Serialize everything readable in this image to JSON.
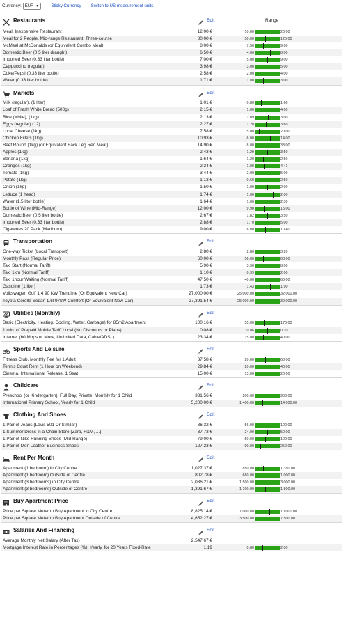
{
  "topbar": {
    "currency_label": "Currency:",
    "currency_value": "EUR",
    "sticky_link": "Sticky Currency",
    "units_link": "Switch to US measurement units"
  },
  "edit_label": "Edit",
  "range_header": "Range",
  "colors": {
    "bar": "#2aa317",
    "link": "#1a4fc4",
    "alt_row": "#f2f2f2"
  },
  "categories": [
    {
      "title": "Restaurants",
      "icon": "fork-knife-icon",
      "show_range_header": true,
      "items": [
        {
          "name": "Meal, Inexpensive Restaurant",
          "price": "12.00 €",
          "min": "10.00",
          "max": "20.00",
          "range": [
            10,
            20
          ],
          "value": 12
        },
        {
          "name": "Meal for 2 People, Mid-range Restaurant, Three-course",
          "price": "80.00 €",
          "min": "50.00",
          "max": "120.00",
          "range": [
            50,
            120
          ],
          "value": 80
        },
        {
          "name": "McMeal at McDonalds (or Equivalent Combo Meal)",
          "price": "8.00 €",
          "min": "7.50",
          "max": "9.00",
          "range": [
            7.5,
            9
          ],
          "value": 8
        },
        {
          "name": "Domestic Beer (0.5 liter draught)",
          "price": "6.50 €",
          "min": "4.00",
          "max": "8.00",
          "range": [
            4,
            8
          ],
          "value": 6.5
        },
        {
          "name": "Imported Beer (0.33 liter bottle)",
          "price": "7.00 €",
          "min": "5.00",
          "max": "9.00",
          "range": [
            5,
            9
          ],
          "value": 7
        },
        {
          "name": "Cappuccino (regular)",
          "price": "3.98 €",
          "min": "3.00",
          "max": "5.00",
          "range": [
            3,
            5
          ],
          "value": 3.98
        },
        {
          "name": "Coke/Pepsi (0.33 liter bottle)",
          "price": "2.58 €",
          "min": "2.00",
          "max": "4.00",
          "range": [
            2,
            4
          ],
          "value": 2.58
        },
        {
          "name": "Water (0.33 liter bottle)",
          "price": "1.71 €",
          "min": "1.00",
          "max": "3.00",
          "range": [
            1,
            3
          ],
          "value": 1.71
        }
      ]
    },
    {
      "title": "Markets",
      "icon": "shopping-cart-icon",
      "show_range_header": false,
      "items": [
        {
          "name": "Milk (regular), (1 liter)",
          "price": "1.01 €",
          "min": "0.80",
          "max": "1.60",
          "range": [
            0.8,
            1.6
          ],
          "value": 1.01
        },
        {
          "name": "Loaf of Fresh White Bread (500g)",
          "price": "2.15 €",
          "min": "1.00",
          "max": "4.00",
          "range": [
            1,
            4
          ],
          "value": 2.15
        },
        {
          "name": "Rice (white), (1kg)",
          "price": "2.13 €",
          "min": "1.09",
          "max": "3.00",
          "range": [
            1.09,
            3
          ],
          "value": 2.13
        },
        {
          "name": "Eggs (regular) (12)",
          "price": "2.27 €",
          "min": "1.20",
          "max": "3.60",
          "range": [
            1.2,
            3.6
          ],
          "value": 2.27
        },
        {
          "name": "Local Cheese (1kg)",
          "price": "7.58 €",
          "min": "5.00",
          "max": "20.00",
          "range": [
            5,
            20
          ],
          "value": 7.58
        },
        {
          "name": "Chicken Fillets (1kg)",
          "price": "10.93 €",
          "min": "6.00",
          "max": "14.00",
          "range": [
            6,
            14
          ],
          "value": 10.93
        },
        {
          "name": "Beef Round (1kg) (or Equivalent Back Leg Red Meat)",
          "price": "14.90 €",
          "min": "8.00",
          "max": "33.00",
          "range": [
            8,
            33
          ],
          "value": 14.9
        },
        {
          "name": "Apples (1kg)",
          "price": "2.43 €",
          "min": "1.29",
          "max": "3.50",
          "range": [
            1.29,
            3.5
          ],
          "value": 2.43
        },
        {
          "name": "Banana (1kg)",
          "price": "1.64 €",
          "min": "1.20",
          "max": "2.50",
          "range": [
            1.2,
            2.5
          ],
          "value": 1.64
        },
        {
          "name": "Oranges (1kg)",
          "price": "2.34 €",
          "min": "1.00",
          "max": "4.41",
          "range": [
            1,
            4.41
          ],
          "value": 2.34
        },
        {
          "name": "Tomato (1kg)",
          "price": "3.44 €",
          "min": "2.00",
          "max": "5.00",
          "range": [
            2,
            5
          ],
          "value": 3.44
        },
        {
          "name": "Potato (1kg)",
          "price": "1.13 €",
          "min": "0.60",
          "max": "2.50",
          "range": [
            0.6,
            2.5
          ],
          "value": 1.13
        },
        {
          "name": "Onion (1kg)",
          "price": "1.50 €",
          "min": "1.00",
          "max": "2.00",
          "range": [
            1,
            2
          ],
          "value": 1.5
        },
        {
          "name": "Lettuce (1 head)",
          "price": "1.74 €",
          "min": "1.00",
          "max": "2.00",
          "range": [
            1,
            2
          ],
          "value": 1.74
        },
        {
          "name": "Water (1.5 liter bottle)",
          "price": "1.64 €",
          "min": "1.00",
          "max": "2.30",
          "range": [
            1,
            2.3
          ],
          "value": 1.64
        },
        {
          "name": "Bottle of Wine (Mid-Range)",
          "price": "12.00 €",
          "min": "9.90",
          "max": "15.00",
          "range": [
            9.9,
            15
          ],
          "value": 12
        },
        {
          "name": "Domestic Beer (0.5 liter bottle)",
          "price": "2.67 €",
          "min": "1.82",
          "max": "3.50",
          "range": [
            1.82,
            3.5
          ],
          "value": 2.67
        },
        {
          "name": "Imported Beer (0.33 liter bottle)",
          "price": "2.88 €",
          "min": "1.70",
          "max": "5.00",
          "range": [
            1.7,
            5
          ],
          "value": 2.88
        },
        {
          "name": "Cigarettes 20 Pack (Marlboro)",
          "price": "9.00 €",
          "min": "8.00",
          "max": "10.40",
          "range": [
            8,
            10.4
          ],
          "value": 9
        }
      ]
    },
    {
      "title": "Transportation",
      "icon": "bus-icon",
      "show_range_header": false,
      "items": [
        {
          "name": "One-way Ticket (Local Transport)",
          "price": "2.80 €",
          "min": "2.80",
          "max": "3.20",
          "range": [
            2.8,
            3.2
          ],
          "value": 2.8
        },
        {
          "name": "Monthly Pass (Regular Price)",
          "price": "60.00 €",
          "min": "56.00",
          "max": "68.00",
          "range": [
            56,
            68
          ],
          "value": 60
        },
        {
          "name": "Taxi Start (Normal Tariff)",
          "price": "5.90 €",
          "min": "3.90",
          "max": "8.00",
          "range": [
            3.9,
            8
          ],
          "value": 5.9
        },
        {
          "name": "Taxi 1km (Normal Tariff)",
          "price": "1.10 €",
          "min": "0.99",
          "max": "2.00",
          "range": [
            0.99,
            2
          ],
          "value": 1.1
        },
        {
          "name": "Taxi 1hour Waiting (Normal Tariff)",
          "price": "47.50 €",
          "min": "40.00",
          "max": "60.00",
          "range": [
            40,
            60
          ],
          "value": 47.5
        },
        {
          "name": "Gasoline (1 liter)",
          "price": "1.73 €",
          "min": "1.43",
          "max": "1.90",
          "range": [
            1.43,
            1.9
          ],
          "value": 1.73
        },
        {
          "name": "Volkswagen Golf 1.4 90 KW Trendline (Or Equivalent New Car)",
          "price": "27,000.00 €",
          "min": "25,000.00",
          "max": "32,000.00",
          "range": [
            25000,
            32000
          ],
          "value": 27000
        },
        {
          "name": "Toyota Corolla Sedan 1.6l 97kW Comfort (Or Equivalent New Car)",
          "price": "27,391.54 €",
          "min": "25,000.00",
          "max": "30,000.00",
          "range": [
            25000,
            30000
          ],
          "value": 27391.54
        }
      ]
    },
    {
      "title": "Utilities (Monthly)",
      "icon": "plug-icon",
      "show_range_header": false,
      "items": [
        {
          "name": "Basic (Electricity, Heating, Cooling, Water, Garbage) for 85m2 Apartment",
          "price": "100.16 €",
          "min": "55.00",
          "max": "170.00",
          "range": [
            55,
            170
          ],
          "value": 100.16
        },
        {
          "name": "1 min. of Prepaid Mobile Tariff Local (No Discounts or Plans)",
          "price": "0.08 €",
          "min": "0.06",
          "max": "0.10",
          "range": [
            0.06,
            0.1
          ],
          "value": 0.08
        },
        {
          "name": "Internet (60 Mbps or More, Unlimited Data, Cable/ADSL)",
          "price": "23.34 €",
          "min": "15.00",
          "max": "40.00",
          "range": [
            15,
            40
          ],
          "value": 23.34
        }
      ]
    },
    {
      "title": "Sports And Leisure",
      "icon": "bicycle-icon",
      "show_range_header": false,
      "items": [
        {
          "name": "Fitness Club, Monthly Fee for 1 Adult",
          "price": "37.58 €",
          "min": "20.00",
          "max": "60.00",
          "range": [
            20,
            60
          ],
          "value": 37.58
        },
        {
          "name": "Tennis Court Rent (1 Hour on Weekend)",
          "price": "29.84 €",
          "min": "20.00",
          "max": "40.00",
          "range": [
            20,
            40
          ],
          "value": 29.84
        },
        {
          "name": "Cinema, International Release, 1 Seat",
          "price": "15.00 €",
          "min": "13.00",
          "max": "20.00",
          "range": [
            13,
            20
          ],
          "value": 15
        }
      ]
    },
    {
      "title": "Childcare",
      "icon": "child-icon",
      "show_range_header": false,
      "items": [
        {
          "name": "Preschool (or Kindergarten), Full Day, Private, Monthly for 1 Child",
          "price": "331.56 €",
          "min": "200.00",
          "max": "900.00",
          "range": [
            200,
            900
          ],
          "value": 331.56
        },
        {
          "name": "International Primary School, Yearly for 1 Child",
          "price": "5,200.00 €",
          "min": "1,400.00",
          "max": "14,000.00",
          "range": [
            1400,
            14000
          ],
          "value": 5200
        }
      ]
    },
    {
      "title": "Clothing And Shoes",
      "icon": "tshirt-icon",
      "show_range_header": false,
      "items": [
        {
          "name": "1 Pair of Jeans (Levis 501 Or Similar)",
          "price": "86.32 €",
          "min": "56.00",
          "max": "120.00",
          "range": [
            56,
            120
          ],
          "value": 86.32
        },
        {
          "name": "1 Summer Dress in a Chain Store (Zara, H&M, ...)",
          "price": "37.73 €",
          "min": "24.00",
          "max": "50.00",
          "range": [
            24,
            50
          ],
          "value": 37.73
        },
        {
          "name": "1 Pair of Nike Running Shoes (Mid-Range)",
          "price": "79.00 €",
          "min": "50.00",
          "max": "120.00",
          "range": [
            50,
            120
          ],
          "value": 79
        },
        {
          "name": "1 Pair of Men Leather Business Shoes",
          "price": "127.23 €",
          "min": "90.00",
          "max": "250.00",
          "range": [
            90,
            250
          ],
          "value": 127.23
        }
      ]
    },
    {
      "title": "Rent Per Month",
      "icon": "bed-icon",
      "show_range_header": false,
      "items": [
        {
          "name": "Apartment (1 bedroom) in City Centre",
          "price": "1,027.37 €",
          "min": "850.00",
          "max": "1,350.00",
          "range": [
            850,
            1350
          ],
          "value": 1027.37
        },
        {
          "name": "Apartment (1 bedroom) Outside of Centre",
          "price": "802.78 €",
          "min": "680.00",
          "max": "1,000.00",
          "range": [
            680,
            1000
          ],
          "value": 802.78
        },
        {
          "name": "Apartment (3 bedrooms) in City Centre",
          "price": "2,036.21 €",
          "min": "1,500.00",
          "max": "3,000.00",
          "range": [
            1500,
            3000
          ],
          "value": 2036.21
        },
        {
          "name": "Apartment (3 bedrooms) Outside of Centre",
          "price": "1,391.67 €",
          "min": "1,100.00",
          "max": "1,800.00",
          "range": [
            1100,
            1800
          ],
          "value": 1391.67
        }
      ]
    },
    {
      "title": "Buy Apartment Price",
      "icon": "building-icon",
      "show_range_header": false,
      "items": [
        {
          "name": "Price per Square Meter to Buy Apartment in City Centre",
          "price": "8,825.14 €",
          "min": "7,000.00",
          "max": "10,000.00",
          "range": [
            7000,
            10000
          ],
          "value": 8825.14
        },
        {
          "name": "Price per Square Meter to Buy Apartment Outside of Centre",
          "price": "4,652.27 €",
          "min": "3,500.00",
          "max": "7,500.00",
          "range": [
            3500,
            7500
          ],
          "value": 4652.27
        }
      ]
    },
    {
      "title": "Salaries And Financing",
      "icon": "money-icon",
      "show_range_header": false,
      "items": [
        {
          "name": "Average Monthly Net Salary (After Tax)",
          "price": "2,547.67 €",
          "min": "",
          "max": "",
          "range": null,
          "value": null
        },
        {
          "name": "Mortgage Interest Rate in Percentages (%), Yearly, for 20 Years Fixed-Rate",
          "price": "1.19",
          "min": "0.80",
          "max": "2.00",
          "range": [
            0.8,
            2
          ],
          "value": 1.19
        }
      ]
    }
  ]
}
